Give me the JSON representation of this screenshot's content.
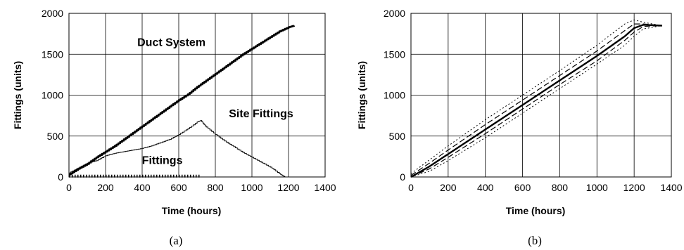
{
  "chart_data": [
    {
      "type": "line",
      "caption": "(a)",
      "xlabel": "Time (hours)",
      "ylabel": "Fittings (units)",
      "xlim": [
        0,
        1400
      ],
      "ylim": [
        0,
        2000
      ],
      "xticks": [
        0,
        200,
        400,
        600,
        800,
        1000,
        1200,
        1400
      ],
      "yticks": [
        0,
        500,
        1000,
        1500,
        2000
      ],
      "grid": true,
      "annotations": [
        {
          "text": "Duct System",
          "x": 560,
          "y": 1600
        },
        {
          "text": "Site Fittings",
          "x": 1050,
          "y": 730
        },
        {
          "text": "Fittings",
          "x": 510,
          "y": 160
        }
      ],
      "series": [
        {
          "name": "Duct System",
          "style": "step-thick",
          "x": [
            0,
            50,
            100,
            150,
            200,
            250,
            300,
            350,
            400,
            450,
            500,
            550,
            600,
            650,
            700,
            750,
            800,
            850,
            900,
            950,
            1000,
            1050,
            1100,
            1150,
            1200,
            1230
          ],
          "y": [
            30,
            100,
            160,
            240,
            310,
            380,
            460,
            540,
            620,
            700,
            780,
            860,
            940,
            1010,
            1100,
            1180,
            1260,
            1340,
            1420,
            1500,
            1570,
            1640,
            1710,
            1780,
            1830,
            1850
          ]
        },
        {
          "name": "Site Fittings",
          "style": "step-thin",
          "x": [
            0,
            50,
            100,
            150,
            200,
            250,
            300,
            350,
            400,
            450,
            500,
            550,
            600,
            650,
            700,
            720,
            750,
            800,
            850,
            900,
            950,
            1000,
            1050,
            1100,
            1150,
            1180
          ],
          "y": [
            50,
            110,
            170,
            200,
            260,
            290,
            310,
            330,
            350,
            380,
            420,
            460,
            520,
            590,
            670,
            690,
            610,
            520,
            440,
            370,
            300,
            240,
            180,
            120,
            40,
            0
          ]
        },
        {
          "name": "Fittings",
          "style": "dotted-thick",
          "x": [
            0,
            100,
            200,
            300,
            400,
            500,
            600,
            700,
            720
          ],
          "y": [
            10,
            10,
            10,
            10,
            10,
            10,
            10,
            10,
            10
          ]
        }
      ]
    },
    {
      "type": "line",
      "caption": "(b)",
      "xlabel": "Time (hours)",
      "ylabel": "Fittings (units)",
      "xlim": [
        0,
        1400
      ],
      "ylim": [
        0,
        2000
      ],
      "xticks": [
        0,
        200,
        400,
        600,
        800,
        1000,
        1200,
        1400
      ],
      "yticks": [
        0,
        500,
        1000,
        1500,
        2000
      ],
      "grid": true,
      "series": [
        {
          "style": "solid-thick",
          "x": [
            0,
            100,
            200,
            400,
            600,
            800,
            1000,
            1150,
            1200,
            1250,
            1350
          ],
          "y": [
            0,
            130,
            280,
            580,
            880,
            1180,
            1480,
            1720,
            1820,
            1860,
            1850
          ]
        },
        {
          "style": "dashed",
          "x": [
            0,
            100,
            200,
            400,
            600,
            800,
            1000,
            1150,
            1200,
            1250,
            1350
          ],
          "y": [
            20,
            170,
            330,
            640,
            940,
            1240,
            1540,
            1790,
            1870,
            1870,
            1850
          ]
        },
        {
          "style": "dashed",
          "x": [
            0,
            100,
            200,
            400,
            600,
            800,
            1000,
            1150,
            1200,
            1250,
            1350
          ],
          "y": [
            0,
            100,
            240,
            530,
            830,
            1130,
            1420,
            1670,
            1770,
            1840,
            1850
          ]
        },
        {
          "style": "dotted",
          "x": [
            0,
            100,
            200,
            400,
            600,
            800,
            1000,
            1150,
            1200,
            1250,
            1350
          ],
          "y": [
            40,
            210,
            380,
            700,
            1000,
            1300,
            1610,
            1870,
            1920,
            1890,
            1850
          ]
        },
        {
          "style": "dotted",
          "x": [
            0,
            100,
            200,
            400,
            600,
            800,
            1000,
            1150,
            1200,
            1250,
            1350
          ],
          "y": [
            0,
            70,
            200,
            480,
            780,
            1080,
            1380,
            1610,
            1720,
            1810,
            1850
          ]
        }
      ]
    }
  ]
}
